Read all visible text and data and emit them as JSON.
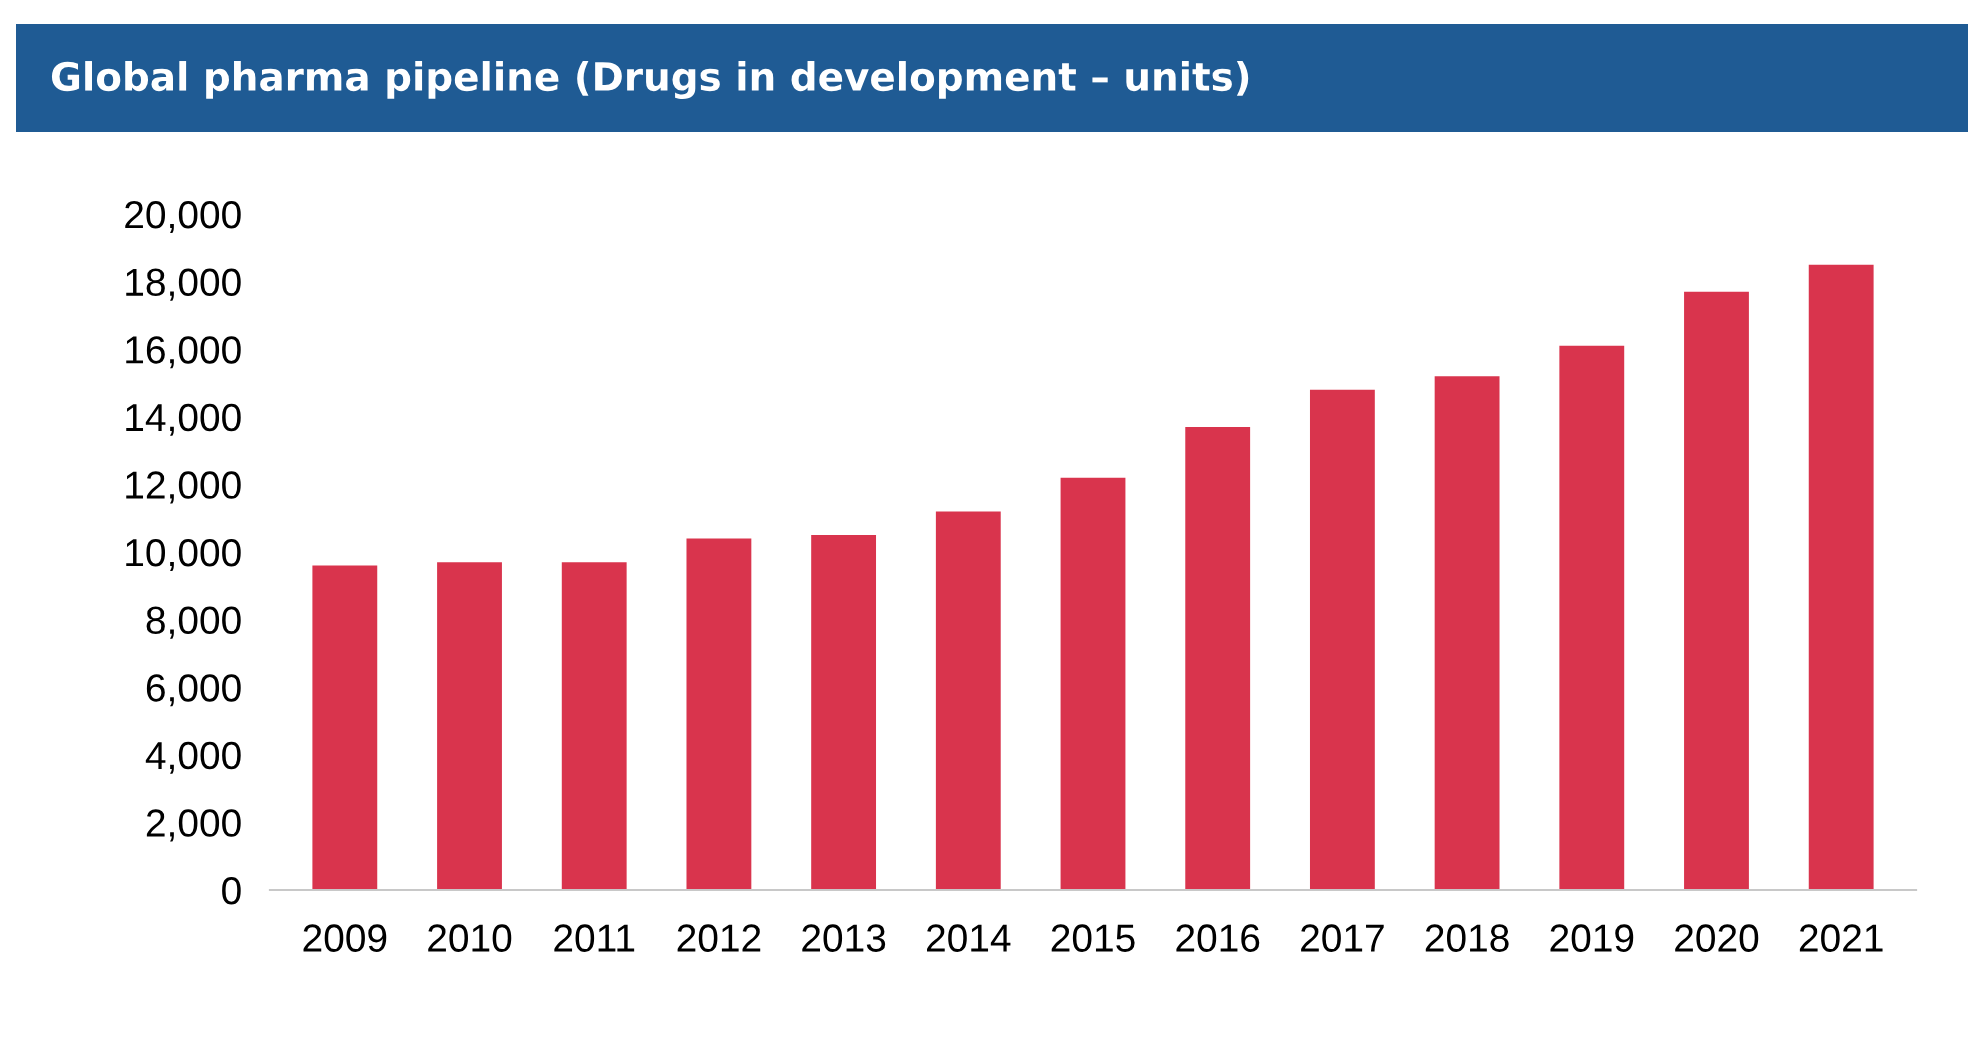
{
  "chart_data": {
    "type": "bar",
    "title": "Global pharma pipeline (Drugs in development – units)",
    "categories": [
      "2009",
      "2010",
      "2011",
      "2012",
      "2013",
      "2014",
      "2015",
      "2016",
      "2017",
      "2018",
      "2019",
      "2020",
      "2021"
    ],
    "values": [
      9600,
      9700,
      9700,
      10400,
      10500,
      11200,
      12200,
      13700,
      14800,
      15200,
      16100,
      17700,
      18500
    ],
    "color": "#d9344d",
    "ylim": [
      0,
      20000
    ],
    "yticks": [
      {
        "value": 0,
        "label": "0"
      },
      {
        "value": 2000,
        "label": "2,000"
      },
      {
        "value": 4000,
        "label": "4,000"
      },
      {
        "value": 6000,
        "label": "6,000"
      },
      {
        "value": 8000,
        "label": "8,000"
      },
      {
        "value": 10000,
        "label": "10,000"
      },
      {
        "value": 12000,
        "label": "12,000"
      },
      {
        "value": 14000,
        "label": "14,000"
      },
      {
        "value": 16000,
        "label": "16,000"
      },
      {
        "value": 18000,
        "label": "18,000"
      },
      {
        "value": 20000,
        "label": "20,000"
      }
    ],
    "grid": false
  }
}
